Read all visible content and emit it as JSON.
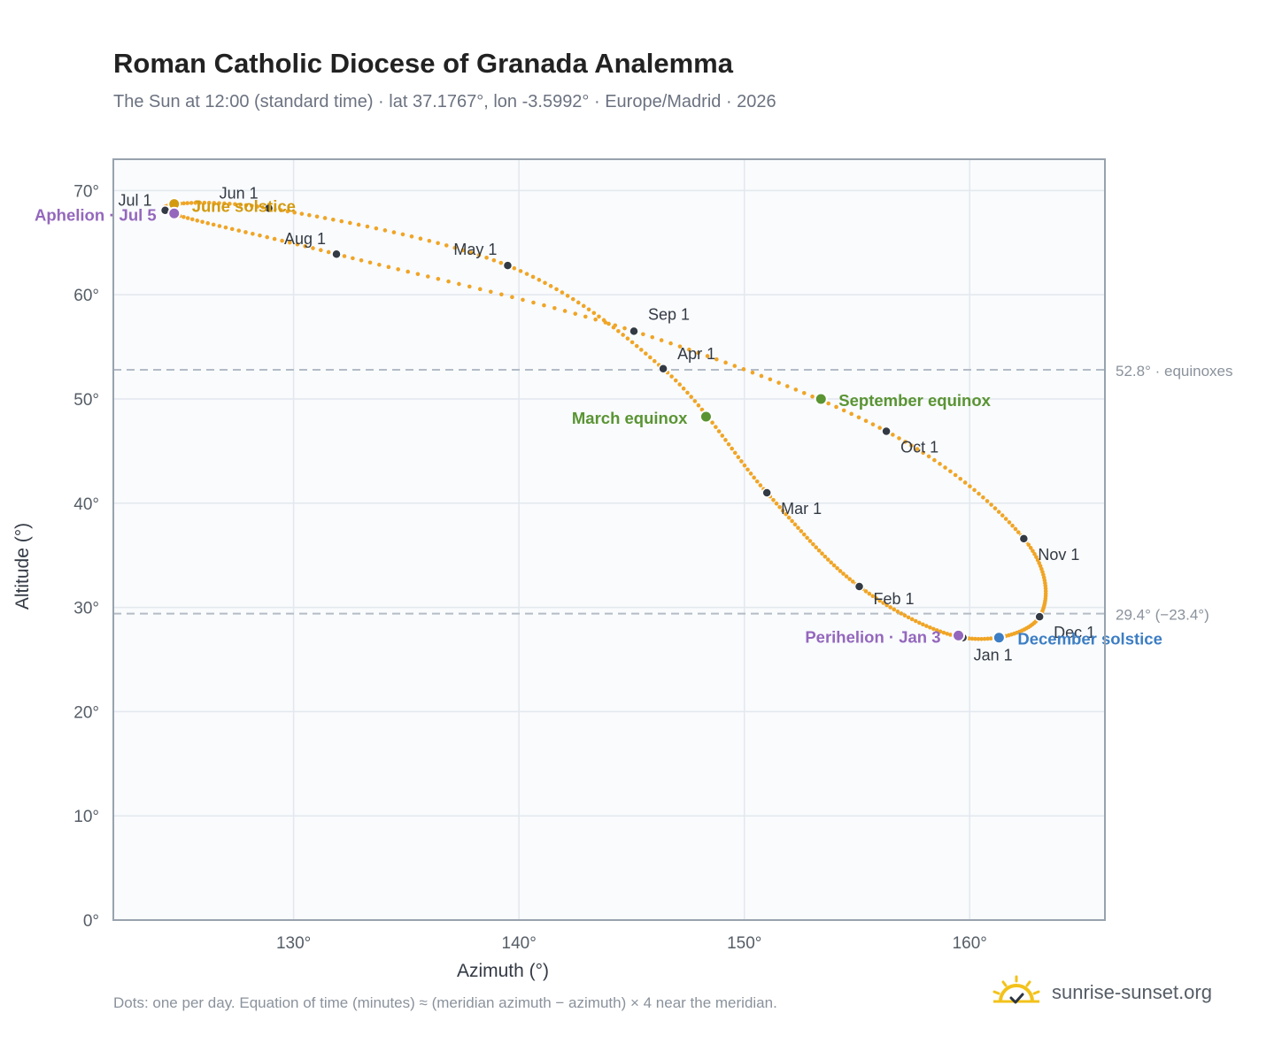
{
  "header": {
    "title": "Roman Catholic Diocese of Granada Analemma",
    "subtitle": "The Sun at 12:00 (standard time) · lat 37.1767°, lon -3.5992° · Europe/Madrid · 2026"
  },
  "footer": {
    "note": "Dots: one per day. Equation of time (minutes) ≈ (meridian azimuth − azimuth) × 4 near the meridian.",
    "brand": "sunrise-sunset.org"
  },
  "colors": {
    "curve": "#f0a526",
    "marker": "#333a44",
    "solstice_june": "#d39a10",
    "solstice_december": "#3d7ec4",
    "equinox": "#5a9433",
    "apsis": "#9467bd",
    "reference_line": "#b4bcc6",
    "plot_bg": "#f9fbfd",
    "grid": "#e3e8ee",
    "frame": "#98a2ae"
  },
  "chart_data": {
    "type": "scatter",
    "xlabel": "Azimuth (°)",
    "ylabel": "Altitude (°)",
    "xlim": [
      122,
      166
    ],
    "ylim": [
      0,
      73
    ],
    "x_ticks": [
      130,
      140,
      150,
      160
    ],
    "x_tick_labels": [
      "130°",
      "140°",
      "150°",
      "160°"
    ],
    "y_ticks": [
      0,
      10,
      20,
      30,
      40,
      50,
      60,
      70
    ],
    "y_tick_labels": [
      "0°",
      "10°",
      "20°",
      "30°",
      "40°",
      "50°",
      "60°",
      "70°"
    ],
    "grid": true,
    "series": [
      {
        "points": [
          {
            "date": "Jan 1",
            "az": 159.7,
            "alt": 27.1
          },
          {
            "date": "Feb 1",
            "az": 155.1,
            "alt": 32.0
          },
          {
            "date": "Mar 1",
            "az": 151.0,
            "alt": 41.0
          },
          {
            "date": "Apr 1",
            "az": 146.4,
            "alt": 52.9
          },
          {
            "date": "May 1",
            "az": 139.5,
            "alt": 62.8
          },
          {
            "date": "Jun 1",
            "az": 128.9,
            "alt": 68.3
          },
          {
            "date": "Jul 1",
            "az": 124.3,
            "alt": 68.1
          },
          {
            "date": "Aug 1",
            "az": 131.9,
            "alt": 63.9
          },
          {
            "date": "Sep 1",
            "az": 145.1,
            "alt": 56.5
          },
          {
            "date": "Oct 1",
            "az": 156.3,
            "alt": 46.9
          },
          {
            "date": "Nov 1",
            "az": 162.4,
            "alt": 36.6
          },
          {
            "date": "Dec 1",
            "az": 163.1,
            "alt": 29.1
          }
        ]
      }
    ],
    "month_labels": [
      "Jan 1",
      "Feb 1",
      "Mar 1",
      "Apr 1",
      "May 1",
      "Jun 1",
      "Jul 1",
      "Aug 1",
      "Sep 1",
      "Oct 1",
      "Nov 1",
      "Dec 1"
    ],
    "events": [
      {
        "label": "June solstice",
        "az": 124.7,
        "alt": 68.7,
        "color": "#d39a10"
      },
      {
        "label": "December solstice",
        "az": 161.3,
        "alt": 27.1,
        "color": "#3d7ec4"
      },
      {
        "label": "March equinox",
        "az": 148.3,
        "alt": 48.3,
        "color": "#5a9433"
      },
      {
        "label": "September equinox",
        "az": 153.4,
        "alt": 50.0,
        "color": "#5a9433"
      },
      {
        "label": "Aphelion · Jul 5",
        "az": 124.7,
        "alt": 67.8,
        "color": "#9467bd"
      },
      {
        "label": "Perihelion · Jan 3",
        "az": 159.5,
        "alt": 27.3,
        "color": "#9467bd"
      }
    ],
    "reference_lines": [
      {
        "value": 52.8,
        "label": "52.8° · equinoxes"
      },
      {
        "value": 29.4,
        "label": "29.4° (−23.4°)"
      }
    ]
  }
}
